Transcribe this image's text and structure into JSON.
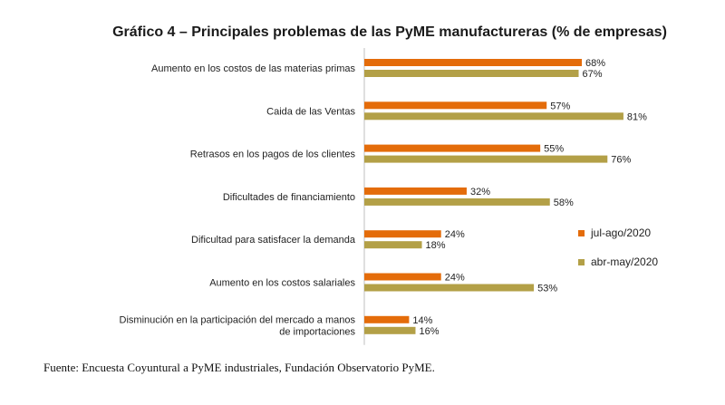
{
  "title": "Gráfico 4 – Principales problemas de las PyME manufactureras (% de empresas)",
  "source": "Fuente: Encuesta Coyuntural a PyME industriales, Fundación Observatorio PyME.",
  "colors": {
    "series1": "#E46C0A",
    "series2": "#B3A047"
  },
  "chart_data": {
    "type": "bar",
    "orientation": "horizontal",
    "title": "Gráfico 4 – Principales problemas de las PyME manufactureras (% de empresas)",
    "categories": [
      [
        "Aumento en los costos de las materias primas"
      ],
      [
        "Caida de las Ventas"
      ],
      [
        "Retrasos en los pagos de los clientes"
      ],
      [
        "Dificultades de financiamiento"
      ],
      [
        "Dificultad para satisfacer la demanda"
      ],
      [
        "Aumento en los costos salariales"
      ],
      [
        "Disminución en la participación del mercado a manos",
        "de importaciones"
      ]
    ],
    "series": [
      {
        "name": "jul-ago/2020",
        "values": [
          68,
          57,
          55,
          32,
          24,
          24,
          14
        ],
        "labels": [
          "68%",
          "57%",
          "55%",
          "32%",
          "24%",
          "24%",
          "14%"
        ]
      },
      {
        "name": "abr-may/2020",
        "values": [
          67,
          81,
          76,
          58,
          18,
          53,
          16
        ],
        "labels": [
          "67%",
          "81%",
          "76%",
          "58%",
          "18%",
          "53%",
          "16%"
        ]
      }
    ],
    "xlim": [
      0,
      100
    ],
    "legend": "right"
  }
}
